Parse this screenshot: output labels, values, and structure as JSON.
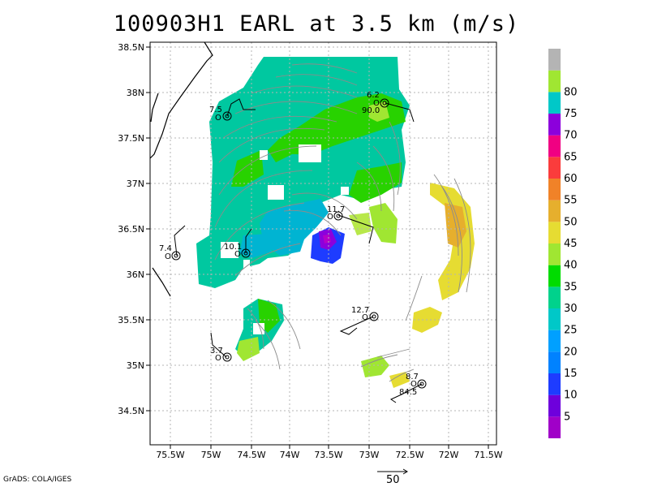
{
  "title": "100903H1 EARL at 3.5 km (m/s)",
  "credit": "GrADS: COLA/IGES",
  "reference_vector_label": "50",
  "lat_labels": [
    "38.5N",
    "38N",
    "37.5N",
    "37N",
    "36.5N",
    "36N",
    "35.5N",
    "35N",
    "34.5N"
  ],
  "lon_labels": [
    "75.5W",
    "75W",
    "74.5W",
    "74W",
    "73.5W",
    "73W",
    "72.5W",
    "72W",
    "71.5W"
  ],
  "colorbar": {
    "labels": [
      "5",
      "10",
      "15",
      "20",
      "25",
      "30",
      "35",
      "40",
      "45",
      "50",
      "55",
      "60",
      "65",
      "70",
      "75",
      "80"
    ],
    "colors": [
      "#a000c8",
      "#6e00dc",
      "#1e3cff",
      "#0082ff",
      "#00a0ff",
      "#00c8c8",
      "#00d28c",
      "#00dc00",
      "#a0e632",
      "#e6dc32",
      "#e6af2d",
      "#f08228",
      "#fa3c3c",
      "#f00082",
      "#8c00dc",
      "#00c8c8",
      "#a0e632",
      "#b4b4b4"
    ]
  },
  "observations": [
    {
      "name": "obs-7-5",
      "top": "7.5",
      "mid": "O",
      "bottom": ""
    },
    {
      "name": "obs-6-2",
      "top": "6.2",
      "mid": "O",
      "bottom": "90.0"
    },
    {
      "name": "obs-11-7",
      "top": "11.7",
      "mid": "O",
      "bottom": ""
    },
    {
      "name": "obs-10-1",
      "top": "10.1",
      "mid": "O",
      "bottom": ""
    },
    {
      "name": "obs-7-4",
      "top": "7.4",
      "mid": "O",
      "bottom": ""
    },
    {
      "name": "obs-12-7",
      "top": "12.7",
      "mid": "O",
      "bottom": ""
    },
    {
      "name": "obs-3-7",
      "top": "3.7",
      "mid": "O",
      "bottom": ""
    },
    {
      "name": "obs-8-7",
      "top": "8.7",
      "mid": "O",
      "bottom": "84.5"
    }
  ]
}
